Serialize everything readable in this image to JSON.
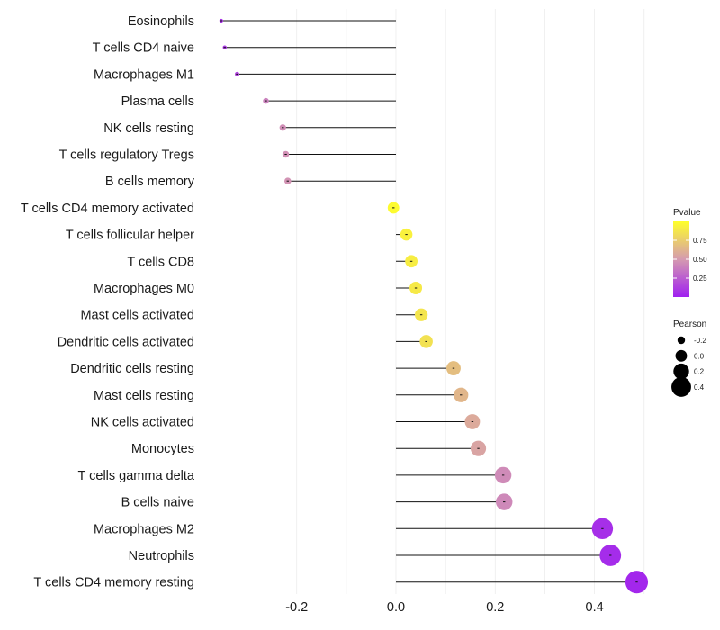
{
  "chart_data": {
    "type": "lollipop",
    "categories": [
      "Eosinophils",
      "T cells CD4 naive",
      "Macrophages M1",
      "Plasma cells",
      "NK cells resting",
      "T cells regulatory  Tregs",
      "B cells memory",
      "T cells CD4 memory activated",
      "T cells follicular helper",
      "T cells CD8",
      "Macrophages M0",
      "Mast cells activated",
      "Dendritic cells activated",
      "Dendritic cells resting",
      "Mast cells resting",
      "NK cells activated",
      "Monocytes",
      "T cells gamma delta",
      "B cells naive",
      "Macrophages M2",
      "Neutrophils",
      "T cells CD4 memory resting"
    ],
    "values": [
      -0.352,
      -0.345,
      -0.32,
      -0.262,
      -0.228,
      -0.222,
      -0.218,
      -0.005,
      0.021,
      0.031,
      0.04,
      0.051,
      0.061,
      0.116,
      0.131,
      0.154,
      0.166,
      0.216,
      0.218,
      0.416,
      0.432,
      0.485
    ],
    "pvalues": [
      0.08,
      0.09,
      0.15,
      0.4,
      0.45,
      0.46,
      0.47,
      0.98,
      0.93,
      0.91,
      0.89,
      0.87,
      0.85,
      0.68,
      0.64,
      0.58,
      0.55,
      0.44,
      0.43,
      0.06,
      0.05,
      0.03
    ],
    "xlim": [
      -0.36,
      0.5
    ],
    "x_ticks": [
      -0.2,
      0.0,
      0.2,
      0.4
    ],
    "x_tick_labels": [
      "-0.2",
      "0.0",
      "0.2",
      "0.4"
    ],
    "xlabel": "",
    "ylabel": "",
    "color_scale": {
      "low": "#a020f0",
      "mid": "#d59ab0",
      "high": "#ffff2a"
    },
    "legend": {
      "color": {
        "title": "Pvalue",
        "ticks": [
          0.25,
          0.5,
          0.75
        ],
        "labels": [
          "0.25",
          "0.50",
          "0.75"
        ],
        "range": [
          0.0,
          1.0
        ]
      },
      "size": {
        "title": "Pearson",
        "values": [
          -0.2,
          0.0,
          0.2,
          0.4
        ],
        "labels": [
          "-0.2",
          "0.0",
          "0.2",
          "0.4"
        ]
      },
      "placement": "right"
    },
    "grid": true
  }
}
